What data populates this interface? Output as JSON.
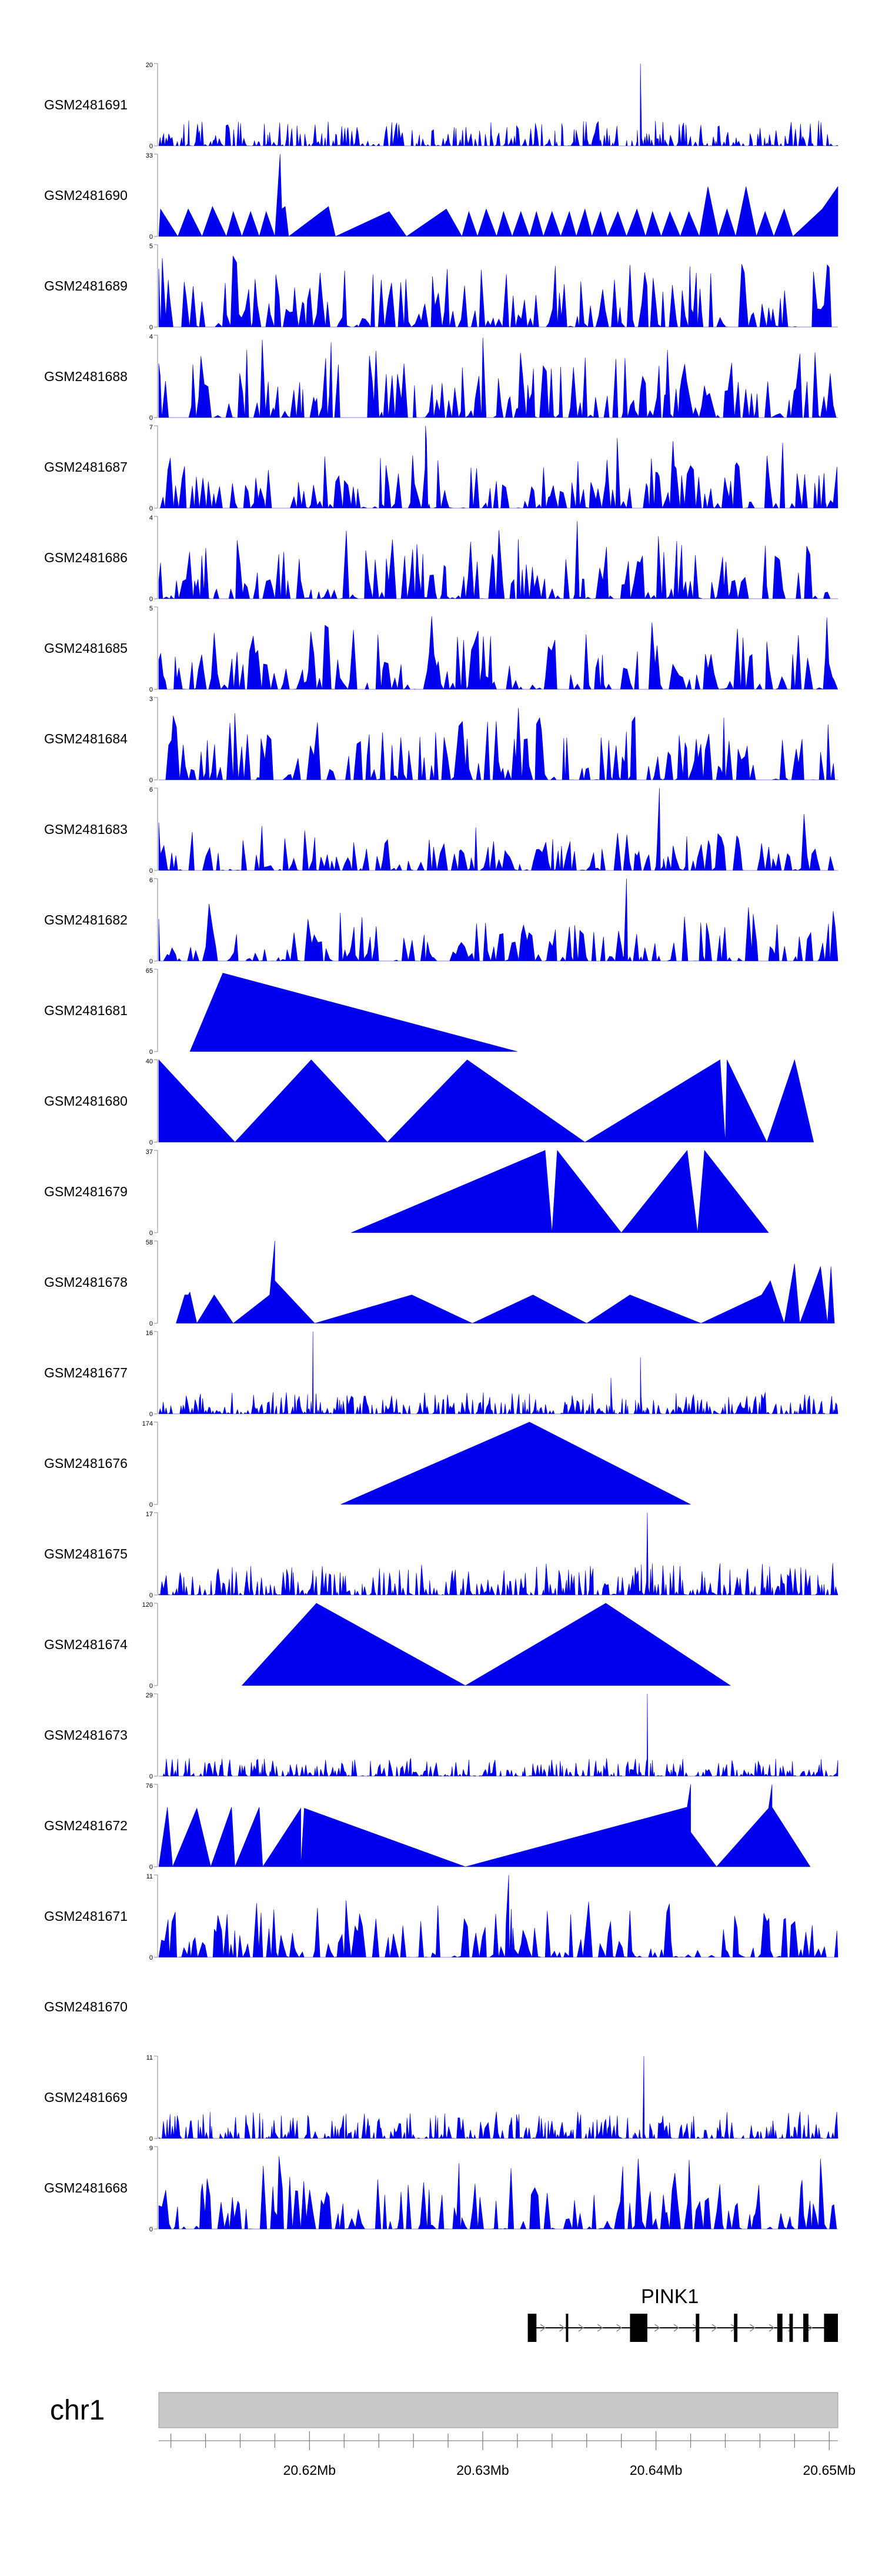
{
  "chart_data": {
    "type": "area",
    "title": "",
    "xlabel": "",
    "ylabel": "",
    "region": {
      "chromosome": "chr1",
      "start_mb": 20.6113,
      "end_mb": 20.6505
    },
    "x_ticks_mb": [
      20.612,
      20.614,
      20.616,
      20.618,
      20.62,
      20.622,
      20.624,
      20.626,
      20.628,
      20.63,
      20.632,
      20.634,
      20.636,
      20.638,
      20.64,
      20.642,
      20.644,
      20.646,
      20.648,
      20.65
    ],
    "x_tick_labels": [
      {
        "label": "20.62Mb",
        "mb": 20.62
      },
      {
        "label": "20.63Mb",
        "mb": 20.63
      },
      {
        "label": "20.64Mb",
        "mb": 20.64
      },
      {
        "label": "20.65Mb",
        "mb": 20.65
      }
    ],
    "fill_color": "#0000ee",
    "series": [
      {
        "name": "GSM2481691",
        "ymax": 20,
        "ymax_label": "20",
        "style": "dense",
        "seed": 11,
        "level": 0.14,
        "peaks": [
          {
            "mb": 20.6391,
            "value": 20,
            "width": 0.0002
          }
        ]
      },
      {
        "name": "GSM2481690",
        "ymax": 33,
        "ymax_label": "33",
        "style": "triangles",
        "points": [
          [
            20.6113,
            0
          ],
          [
            20.6114,
            11
          ],
          [
            20.6124,
            0
          ],
          [
            20.613,
            11
          ],
          [
            20.6138,
            0
          ],
          [
            20.6144,
            12
          ],
          [
            20.6152,
            0
          ],
          [
            20.6156,
            10
          ],
          [
            20.6161,
            0
          ],
          [
            20.6166,
            10
          ],
          [
            20.6171,
            0
          ],
          [
            20.6175,
            10
          ],
          [
            20.618,
            0
          ],
          [
            20.6183,
            33
          ],
          [
            20.6184,
            11
          ],
          [
            20.6186,
            12
          ],
          [
            20.6188,
            0
          ],
          [
            20.6211,
            12
          ],
          [
            20.6215,
            0
          ],
          [
            20.6246,
            10
          ],
          [
            20.6256,
            0
          ],
          [
            20.6279,
            11
          ],
          [
            20.6288,
            0
          ],
          [
            20.6292,
            10
          ],
          [
            20.6297,
            0
          ],
          [
            20.6302,
            11
          ],
          [
            20.6308,
            0
          ],
          [
            20.6312,
            10
          ],
          [
            20.6317,
            0
          ],
          [
            20.6322,
            10
          ],
          [
            20.6327,
            0
          ],
          [
            20.6331,
            10
          ],
          [
            20.6335,
            0
          ],
          [
            20.634,
            10
          ],
          [
            20.6345,
            0
          ],
          [
            20.635,
            10
          ],
          [
            20.6354,
            0
          ],
          [
            20.6359,
            11
          ],
          [
            20.6363,
            0
          ],
          [
            20.6368,
            10
          ],
          [
            20.6372,
            0
          ],
          [
            20.6378,
            10
          ],
          [
            20.6383,
            0
          ],
          [
            20.6389,
            11
          ],
          [
            20.6394,
            0
          ],
          [
            20.6398,
            10
          ],
          [
            20.6403,
            0
          ],
          [
            20.6408,
            10
          ],
          [
            20.6414,
            0
          ],
          [
            20.6419,
            10
          ],
          [
            20.6425,
            0
          ],
          [
            20.643,
            20
          ],
          [
            20.6436,
            0
          ],
          [
            20.6441,
            11
          ],
          [
            20.6446,
            0
          ],
          [
            20.6452,
            20
          ],
          [
            20.6458,
            0
          ],
          [
            20.6463,
            10
          ],
          [
            20.6468,
            0
          ],
          [
            20.6474,
            11
          ],
          [
            20.6479,
            0
          ],
          [
            20.6496,
            11
          ],
          [
            20.6505,
            20
          ],
          [
            20.6505,
            0
          ]
        ]
      },
      {
        "name": "GSM2481689",
        "ymax": 5,
        "ymax_label": "5",
        "style": "spiky",
        "seed": 23,
        "level": 0.55,
        "peaks": []
      },
      {
        "name": "GSM2481688",
        "ymax": 4,
        "ymax_label": "4",
        "style": "spiky",
        "seed": 37,
        "level": 0.6,
        "peaks": []
      },
      {
        "name": "GSM2481687",
        "ymax": 7,
        "ymax_label": "7",
        "style": "spiky",
        "seed": 41,
        "level": 0.42,
        "peaks": [
          {
            "mb": 20.6267,
            "value": 7,
            "width": 0.0002
          }
        ]
      },
      {
        "name": "GSM2481686",
        "ymax": 4,
        "ymax_label": "4",
        "style": "spiky",
        "seed": 53,
        "level": 0.5,
        "peaks": []
      },
      {
        "name": "GSM2481685",
        "ymax": 5,
        "ymax_label": "5",
        "style": "spiky",
        "seed": 61,
        "level": 0.5,
        "peaks": []
      },
      {
        "name": "GSM2481684",
        "ymax": 3,
        "ymax_label": "3",
        "style": "spiky",
        "seed": 71,
        "level": 0.55,
        "peaks": []
      },
      {
        "name": "GSM2481683",
        "ymax": 6,
        "ymax_label": "6",
        "style": "spiky",
        "seed": 83,
        "level": 0.3,
        "peaks": [
          {
            "mb": 20.6402,
            "value": 6,
            "width": 0.0002
          }
        ]
      },
      {
        "name": "GSM2481682",
        "ymax": 6,
        "ymax_label": "6",
        "style": "spiky",
        "seed": 97,
        "level": 0.32,
        "peaks": [
          {
            "mb": 20.6383,
            "value": 6,
            "width": 0.0002
          }
        ]
      },
      {
        "name": "GSM2481681",
        "ymax": 65,
        "ymax_label": "65",
        "style": "triangles",
        "points": [
          [
            20.6131,
            0
          ],
          [
            20.615,
            62
          ],
          [
            20.615,
            13
          ],
          [
            20.615,
            62
          ],
          [
            20.632,
            0
          ]
        ]
      },
      {
        "name": "GSM2481680",
        "ymax": 40,
        "ymax_label": "40",
        "style": "triangles",
        "points": [
          [
            20.6113,
            40
          ],
          [
            20.6157,
            0
          ],
          [
            20.6201,
            40
          ],
          [
            20.6245,
            0
          ],
          [
            20.6291,
            40
          ],
          [
            20.6359,
            0
          ],
          [
            20.6437,
            40
          ],
          [
            20.644,
            0
          ],
          [
            20.6441,
            40
          ],
          [
            20.6464,
            0
          ],
          [
            20.648,
            40
          ],
          [
            20.6491,
            0
          ]
        ]
      },
      {
        "name": "GSM2481679",
        "ymax": 37,
        "ymax_label": "37",
        "style": "triangles",
        "points": [
          [
            20.6224,
            0
          ],
          [
            20.6336,
            37
          ],
          [
            20.634,
            0
          ],
          [
            20.6343,
            37
          ],
          [
            20.638,
            0
          ],
          [
            20.6418,
            37
          ],
          [
            20.6424,
            0
          ],
          [
            20.6428,
            37
          ],
          [
            20.6465,
            0
          ]
        ]
      },
      {
        "name": "GSM2481678",
        "ymax": 58,
        "ymax_label": "58",
        "style": "triangles",
        "points": [
          [
            20.6123,
            0
          ],
          [
            20.6128,
            20
          ],
          [
            20.613,
            20
          ],
          [
            20.6131,
            22
          ],
          [
            20.6135,
            0
          ],
          [
            20.6145,
            20
          ],
          [
            20.6156,
            0
          ],
          [
            20.6177,
            20
          ],
          [
            20.618,
            60
          ],
          [
            20.618,
            30
          ],
          [
            20.6203,
            0
          ],
          [
            20.6259,
            20
          ],
          [
            20.6294,
            0
          ],
          [
            20.6329,
            20
          ],
          [
            20.636,
            0
          ],
          [
            20.6385,
            20
          ],
          [
            20.6426,
            0
          ],
          [
            20.6461,
            20
          ],
          [
            20.6466,
            30
          ],
          [
            20.6474,
            0
          ],
          [
            20.648,
            42
          ],
          [
            20.6483,
            0
          ],
          [
            20.6495,
            40
          ],
          [
            20.6499,
            0
          ],
          [
            20.6501,
            40
          ],
          [
            20.6503,
            0
          ]
        ]
      },
      {
        "name": "GSM2481677",
        "ymax": 16,
        "ymax_label": "16",
        "style": "dense",
        "seed": 131,
        "level": 0.12,
        "peaks": [
          {
            "mb": 20.6202,
            "value": 16,
            "width": 0.0003
          },
          {
            "mb": 20.6391,
            "value": 11,
            "width": 0.0003
          },
          {
            "mb": 20.6374,
            "value": 7,
            "width": 0.0002
          }
        ]
      },
      {
        "name": "GSM2481676",
        "ymax": 174,
        "ymax_label": "174",
        "style": "triangles",
        "points": [
          [
            20.6218,
            0
          ],
          [
            20.6327,
            174
          ],
          [
            20.6327,
            80
          ],
          [
            20.6327,
            174
          ],
          [
            20.642,
            0
          ]
        ]
      },
      {
        "name": "GSM2481675",
        "ymax": 17,
        "ymax_label": "17",
        "style": "dense",
        "seed": 151,
        "level": 0.18,
        "peaks": [
          {
            "mb": 20.6395,
            "value": 17,
            "width": 0.0004
          }
        ]
      },
      {
        "name": "GSM2481674",
        "ymax": 120,
        "ymax_label": "120",
        "style": "triangles",
        "points": [
          [
            20.6161,
            0
          ],
          [
            20.6204,
            120
          ],
          [
            20.6204,
            40
          ],
          [
            20.6204,
            120
          ],
          [
            20.629,
            0
          ],
          [
            20.6371,
            120
          ],
          [
            20.6443,
            0
          ]
        ]
      },
      {
        "name": "GSM2481673",
        "ymax": 29,
        "ymax_label": "29",
        "style": "dense",
        "seed": 173,
        "level": 0.1,
        "peaks": [
          {
            "mb": 20.6395,
            "value": 29,
            "width": 0.0004
          }
        ]
      },
      {
        "name": "GSM2481672",
        "ymax": 76,
        "ymax_label": "76",
        "style": "triangles",
        "points": [
          [
            20.6113,
            0
          ],
          [
            20.6118,
            55
          ],
          [
            20.6121,
            0
          ],
          [
            20.6135,
            54
          ],
          [
            20.6143,
            0
          ],
          [
            20.6155,
            55
          ],
          [
            20.6157,
            0
          ],
          [
            20.6171,
            55
          ],
          [
            20.6173,
            0
          ],
          [
            20.6195,
            54
          ],
          [
            20.6195,
            0
          ],
          [
            20.6197,
            54
          ],
          [
            20.629,
            0
          ],
          [
            20.6418,
            55
          ],
          [
            20.642,
            78
          ],
          [
            20.642,
            32
          ],
          [
            20.6435,
            0
          ],
          [
            20.6465,
            54
          ],
          [
            20.6467,
            78
          ],
          [
            20.6467,
            55
          ],
          [
            20.6489,
            0
          ]
        ]
      },
      {
        "name": "GSM2481671",
        "ymax": 11,
        "ymax_label": "11",
        "style": "spiky",
        "seed": 191,
        "level": 0.42,
        "peaks": [
          {
            "mb": 20.6315,
            "value": 11,
            "width": 0.0002
          }
        ]
      },
      {
        "name": "GSM2481670",
        "ymax": null,
        "ymax_label": "",
        "style": "empty"
      },
      {
        "name": "GSM2481669",
        "ymax": 11,
        "ymax_label": "11",
        "style": "dense",
        "seed": 211,
        "level": 0.15,
        "peaks": [
          {
            "mb": 20.6393,
            "value": 11,
            "width": 0.0006
          }
        ]
      },
      {
        "name": "GSM2481668",
        "ymax": 9,
        "ymax_label": "9",
        "style": "spiky",
        "seed": 223,
        "level": 0.48,
        "peaks": []
      }
    ],
    "gene": {
      "name": "PINK1",
      "start_mb": 20.6326,
      "end_mb": 20.6505,
      "exons_mb": [
        [
          20.6326,
          20.6331
        ],
        [
          20.6348,
          20.6349
        ],
        [
          20.6385,
          20.6395
        ],
        [
          20.6423,
          20.6425
        ],
        [
          20.6445,
          20.6447
        ],
        [
          20.647,
          20.6473
        ],
        [
          20.6477,
          20.6479
        ],
        [
          20.6485,
          20.6488
        ],
        [
          20.6497,
          20.6505
        ]
      ]
    },
    "chromosome_label": "chr1"
  }
}
